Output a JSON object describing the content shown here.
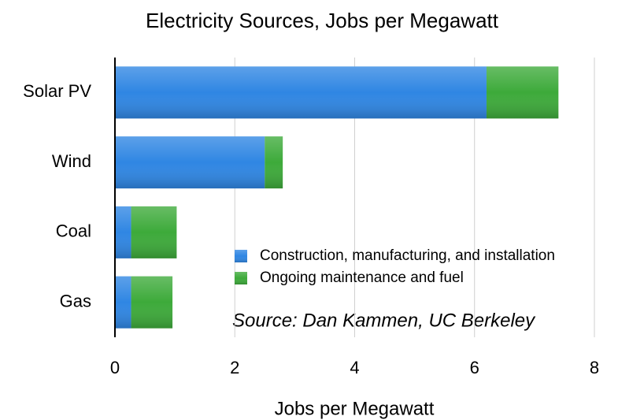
{
  "chart_data": {
    "type": "stacked_barh",
    "title": "Electricity Sources, Jobs per Megawatt",
    "xlabel": "Jobs per Megawatt",
    "annotation": "Source: Dan Kammen, UC Berkeley",
    "categories": [
      "Solar PV",
      "Wind",
      "Coal",
      "Gas"
    ],
    "series": [
      {
        "name": "Construction, manufacturing, and installation",
        "color": "#2f86e3",
        "values": [
          6.2,
          2.5,
          0.27,
          0.27
        ]
      },
      {
        "name": "Ongoing maintenance and fuel",
        "color": "#3daa3a",
        "values": [
          1.2,
          0.3,
          0.76,
          0.69
        ]
      }
    ],
    "xlim": [
      0,
      8
    ],
    "xticks": [
      0,
      2,
      4,
      6,
      8
    ],
    "grid": true
  }
}
